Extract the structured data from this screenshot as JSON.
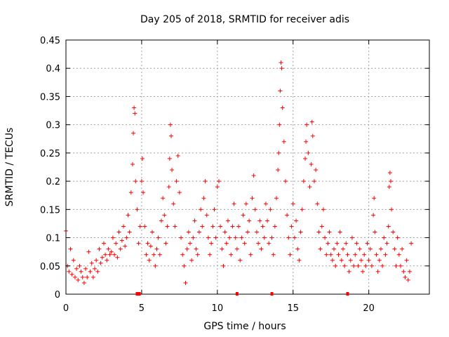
{
  "chart_data": {
    "type": "scatter",
    "title": "Day 205 of 2018, SRMTID for receiver adis",
    "xlabel": "GPS time / hours",
    "ylabel": "SRMTID / TECUs",
    "xlim": [
      0,
      24
    ],
    "ylim": [
      0,
      0.45
    ],
    "xticks": [
      "0",
      "5",
      "10",
      "15",
      "20"
    ],
    "yticks": [
      "0",
      "0.05",
      "0.1",
      "0.15",
      "0.2",
      "0.25",
      "0.3",
      "0.35",
      "0.4",
      "0.45"
    ],
    "grid": true,
    "marker": "+",
    "color": "#ff0000",
    "series": [
      {
        "name": "SRMTID",
        "points": [
          [
            0.0,
            0.112
          ],
          [
            0.1,
            0.05
          ],
          [
            0.2,
            0.04
          ],
          [
            0.3,
            0.08
          ],
          [
            0.4,
            0.035
          ],
          [
            0.5,
            0.06
          ],
          [
            0.6,
            0.03
          ],
          [
            0.7,
            0.045
          ],
          [
            0.8,
            0.025
          ],
          [
            0.9,
            0.05
          ],
          [
            1.0,
            0.04
          ],
          [
            1.1,
            0.03
          ],
          [
            1.2,
            0.02
          ],
          [
            1.3,
            0.045
          ],
          [
            1.4,
            0.03
          ],
          [
            1.5,
            0.075
          ],
          [
            1.6,
            0.04
          ],
          [
            1.7,
            0.055
          ],
          [
            1.8,
            0.03
          ],
          [
            1.9,
            0.045
          ],
          [
            2.0,
            0.06
          ],
          [
            2.1,
            0.04
          ],
          [
            2.2,
            0.08
          ],
          [
            2.3,
            0.055
          ],
          [
            2.4,
            0.065
          ],
          [
            2.5,
            0.09
          ],
          [
            2.6,
            0.07
          ],
          [
            2.7,
            0.06
          ],
          [
            2.8,
            0.08
          ],
          [
            2.9,
            0.07
          ],
          [
            3.0,
            0.075
          ],
          [
            3.1,
            0.1
          ],
          [
            3.2,
            0.07
          ],
          [
            3.3,
            0.09
          ],
          [
            3.4,
            0.065
          ],
          [
            3.5,
            0.11
          ],
          [
            3.6,
            0.08
          ],
          [
            3.7,
            0.095
          ],
          [
            3.8,
            0.12
          ],
          [
            3.9,
            0.085
          ],
          [
            4.0,
            0.1
          ],
          [
            4.1,
            0.14
          ],
          [
            4.2,
            0.11
          ],
          [
            4.3,
            0.18
          ],
          [
            4.4,
            0.23
          ],
          [
            4.45,
            0.285
          ],
          [
            4.5,
            0.33
          ],
          [
            4.55,
            0.32
          ],
          [
            4.6,
            0.2
          ],
          [
            4.7,
            0.15
          ],
          [
            4.8,
            0.09
          ],
          [
            4.9,
            0.12
          ],
          [
            5.0,
            0.2
          ],
          [
            5.05,
            0.24
          ],
          [
            5.1,
            0.18
          ],
          [
            5.2,
            0.12
          ],
          [
            5.3,
            0.07
          ],
          [
            5.4,
            0.09
          ],
          [
            5.5,
            0.06
          ],
          [
            5.6,
            0.085
          ],
          [
            5.7,
            0.11
          ],
          [
            5.8,
            0.07
          ],
          [
            5.9,
            0.05
          ],
          [
            6.0,
            0.08
          ],
          [
            6.1,
            0.1
          ],
          [
            6.2,
            0.07
          ],
          [
            6.3,
            0.13
          ],
          [
            6.4,
            0.17
          ],
          [
            6.5,
            0.14
          ],
          [
            6.6,
            0.09
          ],
          [
            6.7,
            0.12
          ],
          [
            6.8,
            0.19
          ],
          [
            6.85,
            0.24
          ],
          [
            6.9,
            0.3
          ],
          [
            6.95,
            0.28
          ],
          [
            7.0,
            0.22
          ],
          [
            7.1,
            0.16
          ],
          [
            7.2,
            0.12
          ],
          [
            7.3,
            0.2
          ],
          [
            7.4,
            0.245
          ],
          [
            7.5,
            0.18
          ],
          [
            7.6,
            0.1
          ],
          [
            7.7,
            0.07
          ],
          [
            7.8,
            0.05
          ],
          [
            7.9,
            0.02
          ],
          [
            8.0,
            0.08
          ],
          [
            8.1,
            0.11
          ],
          [
            8.2,
            0.09
          ],
          [
            8.3,
            0.06
          ],
          [
            8.4,
            0.1
          ],
          [
            8.5,
            0.13
          ],
          [
            8.6,
            0.08
          ],
          [
            8.7,
            0.07
          ],
          [
            8.8,
            0.11
          ],
          [
            8.9,
            0.15
          ],
          [
            9.0,
            0.12
          ],
          [
            9.1,
            0.17
          ],
          [
            9.2,
            0.2
          ],
          [
            9.3,
            0.14
          ],
          [
            9.4,
            0.1
          ],
          [
            9.5,
            0.07
          ],
          [
            9.6,
            0.09
          ],
          [
            9.7,
            0.12
          ],
          [
            9.8,
            0.15
          ],
          [
            9.9,
            0.1
          ],
          [
            10.0,
            0.19
          ],
          [
            10.1,
            0.2
          ],
          [
            10.2,
            0.12
          ],
          [
            10.3,
            0.08
          ],
          [
            10.4,
            0.05
          ],
          [
            10.5,
            0.11
          ],
          [
            10.6,
            0.09
          ],
          [
            10.7,
            0.13
          ],
          [
            10.8,
            0.1
          ],
          [
            10.9,
            0.07
          ],
          [
            11.0,
            0.12
          ],
          [
            11.1,
            0.16
          ],
          [
            11.2,
            0.1
          ],
          [
            11.3,
            0.08
          ],
          [
            11.4,
            0.12
          ],
          [
            11.5,
            0.06
          ],
          [
            11.6,
            0.1
          ],
          [
            11.7,
            0.14
          ],
          [
            11.8,
            0.09
          ],
          [
            11.9,
            0.16
          ],
          [
            12.0,
            0.11
          ],
          [
            12.1,
            0.13
          ],
          [
            12.2,
            0.07
          ],
          [
            12.3,
            0.17
          ],
          [
            12.4,
            0.21
          ],
          [
            12.5,
            0.15
          ],
          [
            12.6,
            0.11
          ],
          [
            12.7,
            0.09
          ],
          [
            12.8,
            0.13
          ],
          [
            12.9,
            0.08
          ],
          [
            13.0,
            0.12
          ],
          [
            13.1,
            0.1
          ],
          [
            13.2,
            0.16
          ],
          [
            13.3,
            0.13
          ],
          [
            13.4,
            0.09
          ],
          [
            13.5,
            0.15
          ],
          [
            13.6,
            0.1
          ],
          [
            13.7,
            0.07
          ],
          [
            13.8,
            0.12
          ],
          [
            13.9,
            0.17
          ],
          [
            14.0,
            0.22
          ],
          [
            14.05,
            0.25
          ],
          [
            14.1,
            0.3
          ],
          [
            14.15,
            0.36
          ],
          [
            14.2,
            0.41
          ],
          [
            14.25,
            0.4
          ],
          [
            14.3,
            0.33
          ],
          [
            14.4,
            0.27
          ],
          [
            14.5,
            0.2
          ],
          [
            14.6,
            0.14
          ],
          [
            14.7,
            0.1
          ],
          [
            14.8,
            0.07
          ],
          [
            14.9,
            0.12
          ],
          [
            15.0,
            0.16
          ],
          [
            15.1,
            0.1
          ],
          [
            15.2,
            0.13
          ],
          [
            15.3,
            0.08
          ],
          [
            15.4,
            0.06
          ],
          [
            15.5,
            0.11
          ],
          [
            15.6,
            0.15
          ],
          [
            15.7,
            0.2
          ],
          [
            15.8,
            0.24
          ],
          [
            15.85,
            0.27
          ],
          [
            15.9,
            0.3
          ],
          [
            16.0,
            0.25
          ],
          [
            16.1,
            0.19
          ],
          [
            16.2,
            0.23
          ],
          [
            16.25,
            0.305
          ],
          [
            16.3,
            0.28
          ],
          [
            16.4,
            0.2
          ],
          [
            16.5,
            0.22
          ],
          [
            16.6,
            0.16
          ],
          [
            16.7,
            0.11
          ],
          [
            16.8,
            0.08
          ],
          [
            16.9,
            0.12
          ],
          [
            17.0,
            0.15
          ],
          [
            17.1,
            0.1
          ],
          [
            17.2,
            0.07
          ],
          [
            17.3,
            0.09
          ],
          [
            17.4,
            0.11
          ],
          [
            17.5,
            0.07
          ],
          [
            17.6,
            0.06
          ],
          [
            17.7,
            0.08
          ],
          [
            17.8,
            0.05
          ],
          [
            17.9,
            0.09
          ],
          [
            18.0,
            0.07
          ],
          [
            18.1,
            0.11
          ],
          [
            18.2,
            0.06
          ],
          [
            18.3,
            0.08
          ],
          [
            18.4,
            0.05
          ],
          [
            18.5,
            0.09
          ],
          [
            18.6,
            0.07
          ],
          [
            18.7,
            0.04
          ],
          [
            18.8,
            0.06
          ],
          [
            18.9,
            0.1
          ],
          [
            19.0,
            0.05
          ],
          [
            19.1,
            0.07
          ],
          [
            19.2,
            0.09
          ],
          [
            19.3,
            0.05
          ],
          [
            19.4,
            0.08
          ],
          [
            19.5,
            0.06
          ],
          [
            19.6,
            0.04
          ],
          [
            19.7,
            0.07
          ],
          [
            19.8,
            0.05
          ],
          [
            19.9,
            0.09
          ],
          [
            20.0,
            0.06
          ],
          [
            20.1,
            0.08
          ],
          [
            20.2,
            0.05
          ],
          [
            20.3,
            0.14
          ],
          [
            20.35,
            0.17
          ],
          [
            20.4,
            0.11
          ],
          [
            20.5,
            0.07
          ],
          [
            20.6,
            0.04
          ],
          [
            20.7,
            0.06
          ],
          [
            20.8,
            0.08
          ],
          [
            20.9,
            0.05
          ],
          [
            21.0,
            0.1
          ],
          [
            21.1,
            0.07
          ],
          [
            21.2,
            0.09
          ],
          [
            21.3,
            0.12
          ],
          [
            21.35,
            0.19
          ],
          [
            21.4,
            0.215
          ],
          [
            21.45,
            0.2
          ],
          [
            21.5,
            0.15
          ],
          [
            21.6,
            0.11
          ],
          [
            21.7,
            0.08
          ],
          [
            21.8,
            0.05
          ],
          [
            21.9,
            0.1
          ],
          [
            22.0,
            0.07
          ],
          [
            22.1,
            0.05
          ],
          [
            22.2,
            0.08
          ],
          [
            22.3,
            0.04
          ],
          [
            22.4,
            0.03
          ],
          [
            22.5,
            0.06
          ],
          [
            22.6,
            0.025
          ],
          [
            22.7,
            0.04
          ],
          [
            22.8,
            0.09
          ]
        ]
      }
    ],
    "axis_markers": [
      4.7,
      4.85,
      11.3,
      13.6,
      18.6
    ]
  }
}
